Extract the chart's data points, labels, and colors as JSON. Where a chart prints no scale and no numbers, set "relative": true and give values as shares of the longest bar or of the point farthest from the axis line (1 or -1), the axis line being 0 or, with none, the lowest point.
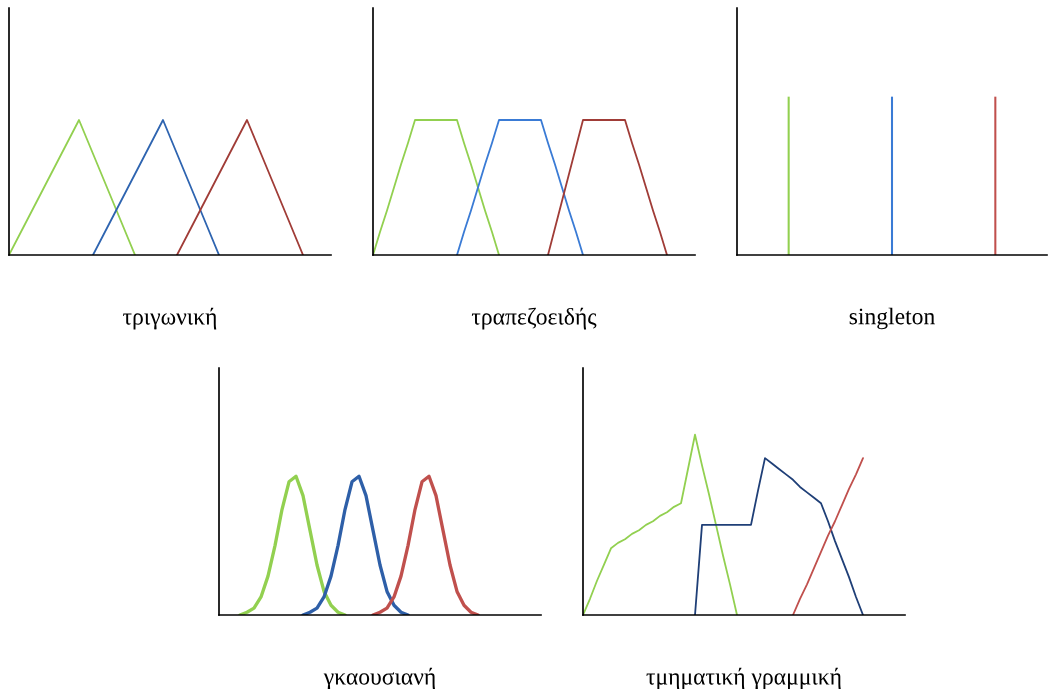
{
  "chart_data": [
    {
      "type": "line",
      "xlabel": "τριγωνική",
      "relative": true,
      "tick_labels": false,
      "categories": [
        null,
        null,
        null,
        null,
        null,
        null,
        null,
        null,
        null,
        null,
        null,
        null,
        null,
        null,
        null,
        null,
        null,
        null,
        null,
        null,
        null,
        null,
        null,
        null
      ],
      "series": [
        {
          "color": "#92d050",
          "values": [
            0,
            0.2,
            0.4,
            0.6,
            0.8,
            1,
            0.75,
            0.5,
            0.25,
            0,
            null,
            null,
            null,
            null,
            null,
            null,
            null,
            null,
            null,
            null,
            null,
            null,
            null,
            null
          ]
        },
        {
          "color": "#2e64b0",
          "values": [
            null,
            null,
            null,
            null,
            null,
            null,
            0,
            0.2,
            0.4,
            0.6,
            0.8,
            1,
            0.75,
            0.5,
            0.25,
            0,
            null,
            null,
            null,
            null,
            null,
            null,
            null,
            null
          ]
        },
        {
          "color": "#a03c37",
          "values": [
            null,
            null,
            null,
            null,
            null,
            null,
            null,
            null,
            null,
            null,
            null,
            null,
            0,
            0.2,
            0.4,
            0.6,
            0.8,
            1,
            0.75,
            0.5,
            0.25,
            0,
            null,
            null
          ]
        }
      ]
    },
    {
      "type": "line",
      "xlabel": "τραπεζοειδής",
      "relative": true,
      "tick_labels": false,
      "categories": [
        null,
        null,
        null,
        null,
        null,
        null,
        null,
        null,
        null,
        null,
        null,
        null,
        null,
        null,
        null,
        null,
        null,
        null,
        null,
        null,
        null,
        null,
        null,
        null,
        null,
        null,
        null,
        null,
        null,
        null,
        null,
        null,
        null,
        null,
        null,
        null,
        null,
        null,
        null,
        null,
        null,
        null,
        null,
        null,
        null,
        null,
        null
      ],
      "series": [
        {
          "color": "#92d050",
          "values": [
            0,
            0.17,
            0.33,
            0.5,
            0.67,
            0.83,
            1,
            1,
            1,
            1,
            1,
            1,
            1,
            0.83,
            0.67,
            0.5,
            0.33,
            0.17,
            0,
            null,
            null,
            null,
            null,
            null,
            null,
            null,
            null,
            null,
            null,
            null,
            null,
            null,
            null,
            null,
            null,
            null,
            null,
            null,
            null,
            null,
            null,
            null,
            null,
            null,
            null,
            null,
            null
          ]
        },
        {
          "color": "#3a7bd5",
          "values": [
            null,
            null,
            null,
            null,
            null,
            null,
            null,
            null,
            null,
            null,
            null,
            null,
            0,
            0.17,
            0.33,
            0.5,
            0.67,
            0.83,
            1,
            1,
            1,
            1,
            1,
            1,
            1,
            0.83,
            0.67,
            0.5,
            0.33,
            0.17,
            0,
            null,
            null,
            null,
            null,
            null,
            null,
            null,
            null,
            null,
            null,
            null,
            null,
            null,
            null,
            null,
            null
          ]
        },
        {
          "color": "#a03c37",
          "values": [
            null,
            null,
            null,
            null,
            null,
            null,
            null,
            null,
            null,
            null,
            null,
            null,
            null,
            null,
            null,
            null,
            null,
            null,
            null,
            null,
            null,
            null,
            null,
            null,
            null,
            0,
            0.2,
            0.4,
            0.6,
            0.8,
            1,
            1,
            1,
            1,
            1,
            1,
            1,
            0.83,
            0.67,
            0.5,
            0.33,
            0.17,
            0,
            null,
            null,
            null,
            null
          ]
        }
      ]
    },
    {
      "type": "bar",
      "xlabel": "singleton",
      "relative": true,
      "tick_labels": false,
      "categories": [
        null,
        null,
        null
      ],
      "values": [
        1,
        1,
        1
      ],
      "colors": [
        "#92d050",
        "#3a7bd5",
        "#c0504d"
      ]
    },
    {
      "type": "line",
      "xlabel": "γκαουσιανή",
      "relative": true,
      "tick_labels": false,
      "categories": [
        null,
        null,
        null,
        null,
        null,
        null,
        null,
        null,
        null,
        null,
        null,
        null,
        null,
        null,
        null,
        null,
        null,
        null,
        null,
        null,
        null,
        null,
        null,
        null,
        null,
        null,
        null,
        null,
        null,
        null,
        null,
        null,
        null,
        null,
        null,
        null,
        null,
        null,
        null,
        null,
        null,
        null,
        null,
        null,
        null,
        null,
        null
      ],
      "series": [
        {
          "color": "#92d050",
          "values": [
            null,
            null,
            null,
            0,
            0.02,
            0.05,
            0.13,
            0.28,
            0.5,
            0.76,
            0.96,
            1,
            0.86,
            0.61,
            0.36,
            0.17,
            0.07,
            0.02,
            0,
            null,
            null,
            null,
            null,
            null,
            null,
            null,
            null,
            null,
            null,
            null,
            null,
            null,
            null,
            null,
            null,
            null,
            null,
            null,
            null,
            null,
            null,
            null,
            null,
            null,
            null,
            null,
            null
          ]
        },
        {
          "color": "#2e5fa8",
          "values": [
            null,
            null,
            null,
            null,
            null,
            null,
            null,
            null,
            null,
            null,
            null,
            null,
            0,
            0.02,
            0.05,
            0.13,
            0.28,
            0.5,
            0.76,
            0.96,
            1,
            0.86,
            0.61,
            0.36,
            0.17,
            0.07,
            0.02,
            0,
            null,
            null,
            null,
            null,
            null,
            null,
            null,
            null,
            null,
            null,
            null,
            null,
            null,
            null,
            null,
            null,
            null,
            null,
            null
          ]
        },
        {
          "color": "#c0504d",
          "values": [
            null,
            null,
            null,
            null,
            null,
            null,
            null,
            null,
            null,
            null,
            null,
            null,
            null,
            null,
            null,
            null,
            null,
            null,
            null,
            null,
            null,
            null,
            0,
            0.02,
            0.05,
            0.13,
            0.28,
            0.5,
            0.76,
            0.96,
            1,
            0.86,
            0.61,
            0.36,
            0.17,
            0.07,
            0.02,
            0,
            null,
            null,
            null,
            null,
            null,
            null,
            null,
            null,
            null
          ]
        }
      ]
    },
    {
      "type": "line",
      "xlabel": "τμηματική γραμμική",
      "relative": true,
      "tick_labels": false,
      "categories": [
        null,
        null,
        null,
        null,
        null,
        null,
        null,
        null,
        null,
        null,
        null,
        null,
        null,
        null,
        null,
        null,
        null,
        null,
        null,
        null,
        null,
        null,
        null,
        null,
        null,
        null,
        null,
        null,
        null,
        null,
        null,
        null,
        null,
        null,
        null,
        null,
        null,
        null,
        null,
        null,
        null,
        null,
        null,
        null,
        null,
        null,
        null
      ],
      "series": [
        {
          "color": "#92d050",
          "values": [
            0,
            0.09,
            0.19,
            0.28,
            0.37,
            0.4,
            0.42,
            0.45,
            0.47,
            0.5,
            0.52,
            0.55,
            0.57,
            0.6,
            0.62,
            0.81,
            1,
            0.83,
            0.67,
            0.5,
            0.33,
            0.17,
            0,
            null,
            null,
            null,
            null,
            null,
            null,
            null,
            null,
            null,
            null,
            null,
            null,
            null,
            null,
            null,
            null,
            null,
            null,
            null,
            null,
            null,
            null,
            null,
            null
          ]
        },
        {
          "color": "#1f3f77",
          "values": [
            null,
            null,
            null,
            null,
            null,
            null,
            null,
            null,
            null,
            null,
            null,
            null,
            null,
            null,
            null,
            null,
            0,
            0.5,
            0.5,
            0.5,
            0.5,
            0.5,
            0.5,
            0.5,
            0.5,
            0.69,
            0.87,
            0.84,
            0.81,
            0.78,
            0.75,
            0.71,
            0.68,
            0.65,
            0.62,
            0.52,
            0.41,
            0.31,
            0.21,
            0.1,
            0,
            null,
            null,
            null,
            null,
            null,
            null
          ]
        },
        {
          "color": "#c0504d",
          "values": [
            null,
            null,
            null,
            null,
            null,
            null,
            null,
            null,
            null,
            null,
            null,
            null,
            null,
            null,
            null,
            null,
            null,
            null,
            null,
            null,
            null,
            null,
            null,
            null,
            null,
            null,
            null,
            null,
            null,
            null,
            0,
            0.09,
            0.17,
            0.26,
            0.35,
            0.44,
            0.52,
            0.61,
            0.7,
            0.78,
            0.87,
            null,
            null,
            null,
            null,
            null,
            null
          ]
        }
      ]
    }
  ]
}
